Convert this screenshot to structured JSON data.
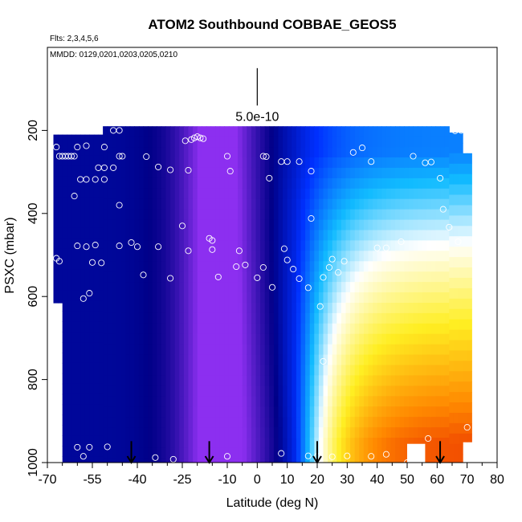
{
  "chart_data": {
    "type": "heatmap",
    "title": "ATOM2 Southbound COBBAE_GEOS5",
    "subtitle_flights": "Flts: 2,3,4,5,6",
    "subtitle_dates": "MMDD: 0129,0201,0203,0205,0210",
    "xlabel": "Latitude (deg N)",
    "ylabel": "PSXC (mbar)",
    "xlim": [
      -70,
      80
    ],
    "ylim": [
      1000,
      0
    ],
    "x_ticks": [
      -70,
      -55,
      -40,
      -25,
      -10,
      0,
      10,
      20,
      30,
      40,
      50,
      60,
      70,
      80
    ],
    "x_minor_ticks": [
      -65,
      -60,
      -50,
      -45,
      -35,
      -30,
      -20,
      -15,
      -5,
      5,
      15,
      25,
      35,
      45,
      55,
      65,
      75
    ],
    "y_ticks": [
      200,
      400,
      600,
      800,
      1000
    ],
    "scale_label": "5.0e-10",
    "scale_bar_x": 0,
    "scale_bar_y": [
      50,
      140
    ],
    "arrows_x": [
      -42,
      -16,
      20,
      61
    ],
    "arrows_y": [
      960,
      1000
    ],
    "colors": {
      "purple": "#8c2ff0",
      "navy": "#000088",
      "blue": "#0030ff",
      "cyan": "#11bbff",
      "white": "#ffffff",
      "yellow": "#ffee22",
      "orange": "#ff8800",
      "red": "#e00000"
    },
    "points": [
      [
        -55,
        200
      ],
      [
        -53,
        200
      ],
      [
        -48,
        200
      ],
      [
        -46,
        200
      ],
      [
        -24,
        225
      ],
      [
        -22,
        222
      ],
      [
        -21,
        218
      ],
      [
        -20,
        215
      ],
      [
        -19,
        218
      ],
      [
        -18,
        220
      ],
      [
        -67,
        240
      ],
      [
        -60,
        240
      ],
      [
        -57,
        237
      ],
      [
        -51,
        240
      ],
      [
        -10,
        262
      ],
      [
        2,
        262
      ],
      [
        3,
        263
      ],
      [
        -46,
        262
      ],
      [
        -45,
        262
      ],
      [
        -37,
        263
      ],
      [
        -66,
        262
      ],
      [
        -65,
        262
      ],
      [
        -64,
        262
      ],
      [
        -63,
        262
      ],
      [
        -62,
        262
      ],
      [
        -61,
        262
      ],
      [
        8,
        275
      ],
      [
        10,
        275
      ],
      [
        14,
        275
      ],
      [
        18,
        298
      ],
      [
        -53,
        290
      ],
      [
        -51,
        290
      ],
      [
        -48,
        290
      ],
      [
        -33,
        288
      ],
      [
        -29,
        295
      ],
      [
        -23,
        296
      ],
      [
        -9,
        298
      ],
      [
        4,
        315
      ],
      [
        -59,
        318
      ],
      [
        -57,
        318
      ],
      [
        -54,
        318
      ],
      [
        -51,
        318
      ],
      [
        -46,
        380
      ],
      [
        -61,
        358
      ],
      [
        -25,
        430
      ],
      [
        -16,
        460
      ],
      [
        -15,
        465
      ],
      [
        -15,
        487
      ],
      [
        -6,
        490
      ],
      [
        -4,
        524
      ],
      [
        -67,
        508
      ],
      [
        -66,
        515
      ],
      [
        -60,
        478
      ],
      [
        -57,
        480
      ],
      [
        -54,
        476
      ],
      [
        -55,
        518
      ],
      [
        -52,
        519
      ],
      [
        -46,
        478
      ],
      [
        -42,
        470
      ],
      [
        -40,
        480
      ],
      [
        -38,
        548
      ],
      [
        -33,
        480
      ],
      [
        -29,
        556
      ],
      [
        -23,
        490
      ],
      [
        -13,
        553
      ],
      [
        -7,
        528
      ],
      [
        0,
        555
      ],
      [
        2,
        530
      ],
      [
        5,
        578
      ],
      [
        9,
        485
      ],
      [
        10,
        512
      ],
      [
        12,
        534
      ],
      [
        14,
        557
      ],
      [
        17,
        579
      ],
      [
        18,
        412
      ],
      [
        21,
        624
      ],
      [
        22,
        554
      ],
      [
        24,
        530
      ],
      [
        25,
        510
      ],
      [
        27,
        542
      ],
      [
        29,
        515
      ],
      [
        32,
        253
      ],
      [
        35,
        242
      ],
      [
        38,
        275
      ],
      [
        40,
        483
      ],
      [
        43,
        483
      ],
      [
        48,
        468
      ],
      [
        52,
        262
      ],
      [
        56,
        278
      ],
      [
        58,
        276
      ],
      [
        61,
        315
      ],
      [
        62,
        390
      ],
      [
        64,
        433
      ],
      [
        67,
        468
      ],
      [
        66,
        201
      ],
      [
        68,
        200
      ],
      [
        -58,
        605
      ],
      [
        -56,
        592
      ],
      [
        -60,
        963
      ],
      [
        -58,
        985
      ],
      [
        -56,
        963
      ],
      [
        -68,
        962
      ],
      [
        -50,
        962
      ],
      [
        -34,
        988
      ],
      [
        -28,
        992
      ],
      [
        -10,
        985
      ],
      [
        8,
        978
      ],
      [
        17,
        984
      ],
      [
        20,
        985
      ],
      [
        25,
        986
      ],
      [
        30,
        984
      ],
      [
        38,
        985
      ],
      [
        43,
        980
      ],
      [
        57,
        942
      ],
      [
        70,
        915
      ],
      [
        22,
        756
      ],
      [
        50,
        1000
      ]
    ]
  }
}
